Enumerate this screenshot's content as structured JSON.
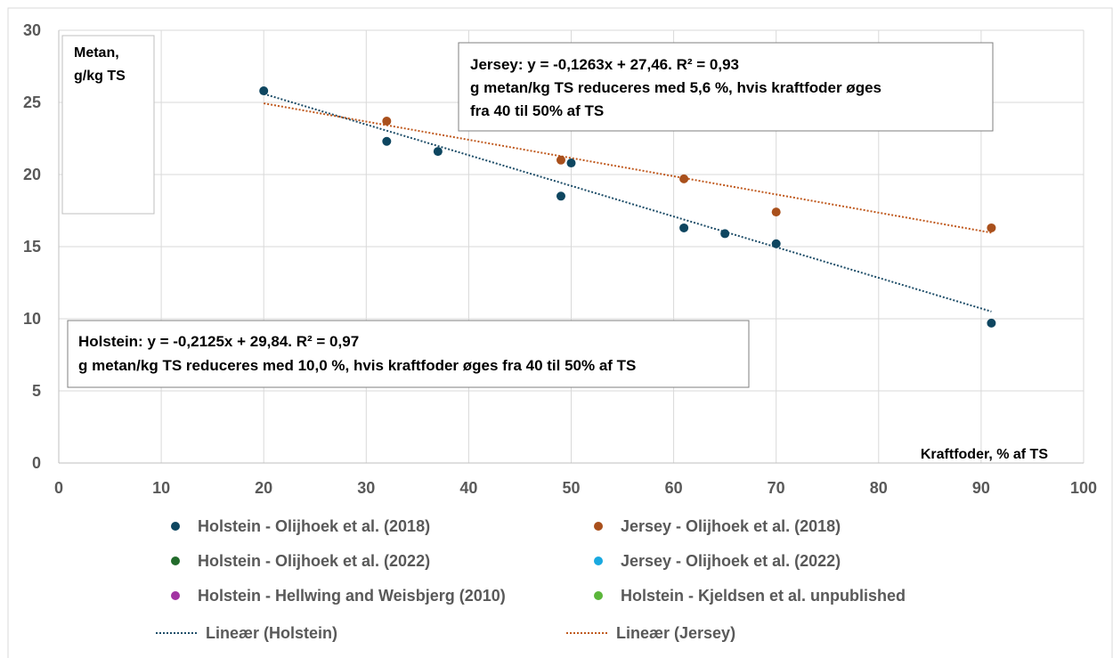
{
  "chart_data": {
    "type": "scatter",
    "xlim": [
      0,
      100
    ],
    "ylim": [
      0,
      30
    ],
    "x_ticks": [
      "0",
      "10",
      "20",
      "30",
      "40",
      "50",
      "60",
      "70",
      "80",
      "90",
      "100"
    ],
    "y_ticks": [
      "0",
      "5",
      "10",
      "15",
      "20",
      "25",
      "30"
    ],
    "ylabel_line1": "Metan,",
    "ylabel_line2": "g/kg TS",
    "xlabel": "Kraftfoder, % af TS",
    "grid": true,
    "legend_position": "bottom",
    "series": [
      {
        "name": "Holstein - Olijhoek et al. (2018)",
        "color": "#0e4660",
        "points": [
          [
            20,
            25.8
          ],
          [
            32,
            22.3
          ],
          [
            37,
            21.6
          ],
          [
            49,
            18.5
          ],
          [
            50,
            20.8
          ],
          [
            61,
            16.3
          ],
          [
            65,
            15.9
          ],
          [
            70,
            15.2
          ],
          [
            91,
            9.7
          ]
        ]
      },
      {
        "name": "Jersey - Olijhoek et al. (2018)",
        "color": "#a9501c",
        "points": [
          [
            32,
            23.7
          ],
          [
            49,
            21.0
          ],
          [
            61,
            19.7
          ],
          [
            70,
            17.4
          ],
          [
            91,
            16.3
          ]
        ]
      },
      {
        "name": "Holstein - Olijhoek et al. (2022)",
        "color": "#226b2b",
        "points": []
      },
      {
        "name": "Jersey - Olijhoek et al. (2022)",
        "color": "#19a9e0",
        "points": []
      },
      {
        "name": "Holstein - Hellwing and Weisbjerg (2010)",
        "color": "#a233a2",
        "points": []
      },
      {
        "name": "Holstein - Kjeldsen et al. unpublished",
        "color": "#5bb63b",
        "points": []
      }
    ],
    "trendlines": [
      {
        "name": "Lineær (Holstein)",
        "color": "#1f4e69",
        "slope": -0.2125,
        "intercept": 29.84,
        "x_range": [
          20,
          91
        ]
      },
      {
        "name": "Lineær (Jersey)",
        "color": "#c05a1f",
        "slope": -0.1263,
        "intercept": 27.46,
        "x_range": [
          20,
          91
        ]
      }
    ],
    "annotations": {
      "jersey_line1": "Jersey: y = -0,1263x + 27,46. R² = 0,93",
      "jersey_line2": "g metan/kg TS reduceres med 5,6 %, hvis  kraftfoder øges",
      "jersey_line3": "fra 40 til 50% af TS",
      "holstein_line1": "Holstein: y = -0,2125x + 29,84. R² = 0,97",
      "holstein_line2": "g metan/kg TS reduceres med 10,0 %, hvis  kraftfoder øges fra 40 til 50% af TS"
    }
  }
}
